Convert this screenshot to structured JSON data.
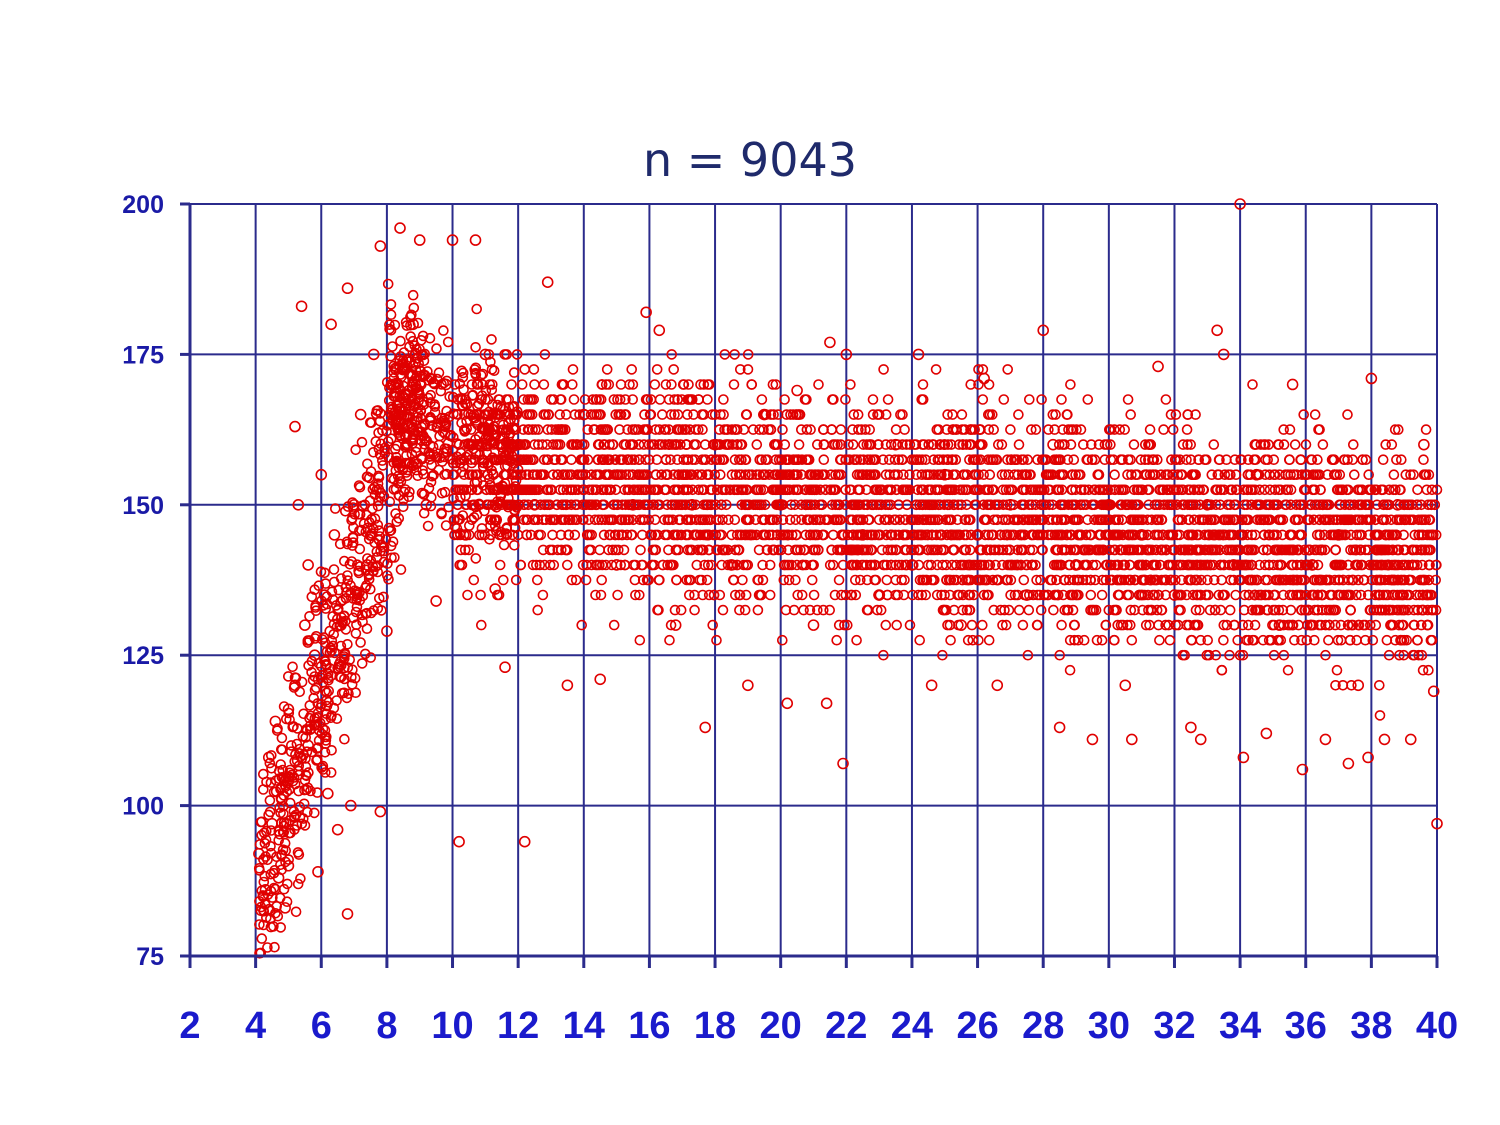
{
  "chart_data": {
    "type": "scatter",
    "title": "n = 9043",
    "xlabel": "",
    "ylabel": "",
    "xlim": [
      2,
      40
    ],
    "ylim": [
      75,
      200
    ],
    "x_ticks": [
      2,
      4,
      6,
      8,
      10,
      12,
      14,
      16,
      18,
      20,
      22,
      24,
      26,
      28,
      30,
      32,
      34,
      36,
      38,
      40
    ],
    "y_ticks": [
      75,
      100,
      125,
      150,
      175,
      200
    ],
    "grid": true,
    "marker": "open-circle",
    "marker_color": "#e00000",
    "n": 9043,
    "points_note_x_y": [
      [
        4.1,
        92
      ],
      [
        4.3,
        86
      ],
      [
        4.4,
        108
      ],
      [
        4.5,
        97
      ],
      [
        4.6,
        114
      ],
      [
        4.7,
        88
      ],
      [
        4.8,
        101
      ],
      [
        4.9,
        83
      ],
      [
        5.0,
        116
      ],
      [
        5.0,
        90
      ],
      [
        5.1,
        105
      ],
      [
        5.2,
        163
      ],
      [
        5.2,
        120
      ],
      [
        5.3,
        150
      ],
      [
        5.4,
        183
      ],
      [
        5.5,
        130
      ],
      [
        5.6,
        140
      ],
      [
        5.6,
        110
      ],
      [
        5.8,
        125
      ],
      [
        5.9,
        89
      ],
      [
        6.0,
        155
      ],
      [
        6.1,
        135
      ],
      [
        6.2,
        102
      ],
      [
        6.3,
        180
      ],
      [
        6.4,
        145
      ],
      [
        6.5,
        96
      ],
      [
        6.6,
        130
      ],
      [
        6.8,
        186
      ],
      [
        6.8,
        82
      ],
      [
        6.9,
        100
      ],
      [
        7.0,
        150
      ],
      [
        7.2,
        165
      ],
      [
        7.4,
        140
      ],
      [
        7.6,
        175
      ],
      [
        7.8,
        193
      ],
      [
        7.8,
        99
      ],
      [
        8.0,
        129
      ],
      [
        8.2,
        170
      ],
      [
        8.4,
        196
      ],
      [
        8.6,
        160
      ],
      [
        8.8,
        180
      ],
      [
        9.0,
        194
      ],
      [
        9.2,
        150
      ],
      [
        9.5,
        134
      ],
      [
        9.8,
        170
      ],
      [
        10.0,
        194
      ],
      [
        10.2,
        94
      ],
      [
        10.4,
        145
      ],
      [
        10.7,
        194
      ],
      [
        11.0,
        175
      ],
      [
        11.3,
        136
      ],
      [
        11.6,
        123
      ],
      [
        12.0,
        160
      ],
      [
        12.2,
        94
      ],
      [
        12.5,
        150
      ],
      [
        12.9,
        187
      ],
      [
        13.5,
        120
      ],
      [
        14.0,
        165
      ],
      [
        14.5,
        121
      ],
      [
        15.0,
        140
      ],
      [
        15.5,
        150
      ],
      [
        15.9,
        182
      ],
      [
        16.3,
        179
      ],
      [
        16.8,
        130
      ],
      [
        17.3,
        150
      ],
      [
        17.7,
        113
      ],
      [
        18.0,
        160
      ],
      [
        18.5,
        140
      ],
      [
        19.0,
        120
      ],
      [
        19.5,
        165
      ],
      [
        20.0,
        150
      ],
      [
        20.2,
        117
      ],
      [
        20.5,
        169
      ],
      [
        21.0,
        130
      ],
      [
        21.4,
        117
      ],
      [
        21.5,
        177
      ],
      [
        21.9,
        107
      ],
      [
        22.0,
        175
      ],
      [
        22.5,
        145
      ],
      [
        23.0,
        135
      ],
      [
        23.5,
        160
      ],
      [
        24.0,
        140
      ],
      [
        24.2,
        175
      ],
      [
        24.6,
        120
      ],
      [
        25.0,
        155
      ],
      [
        25.5,
        130
      ],
      [
        26.0,
        145
      ],
      [
        26.2,
        171
      ],
      [
        26.6,
        120
      ],
      [
        27.0,
        150
      ],
      [
        27.5,
        135
      ],
      [
        28.0,
        179
      ],
      [
        28.3,
        160
      ],
      [
        28.5,
        113
      ],
      [
        29.0,
        140
      ],
      [
        29.5,
        111
      ],
      [
        30.0,
        150
      ],
      [
        30.5,
        120
      ],
      [
        30.7,
        111
      ],
      [
        31.0,
        145
      ],
      [
        31.5,
        173
      ],
      [
        32.0,
        135
      ],
      [
        32.5,
        113
      ],
      [
        32.8,
        111
      ],
      [
        33.0,
        150
      ],
      [
        33.3,
        179
      ],
      [
        33.5,
        175
      ],
      [
        33.8,
        140
      ],
      [
        34.0,
        200
      ],
      [
        34.1,
        108
      ],
      [
        34.5,
        155
      ],
      [
        34.8,
        112
      ],
      [
        35.2,
        130
      ],
      [
        35.6,
        170
      ],
      [
        35.9,
        106
      ],
      [
        36.2,
        140
      ],
      [
        36.6,
        111
      ],
      [
        37.0,
        145
      ],
      [
        37.3,
        107
      ],
      [
        37.6,
        120
      ],
      [
        37.9,
        108
      ],
      [
        38.0,
        171
      ],
      [
        38.4,
        111
      ],
      [
        38.8,
        150
      ],
      [
        39.2,
        111
      ],
      [
        39.6,
        160
      ],
      [
        39.9,
        119
      ],
      [
        40.0,
        97
      ]
    ],
    "cluster_note": "Dense band ~130-165 from x=10 to 40; steep rise 85-190 between x=4 and x=9"
  }
}
